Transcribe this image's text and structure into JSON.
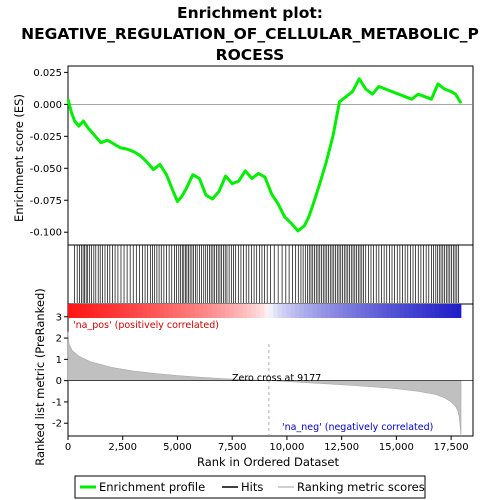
{
  "title_lines": [
    "Enrichment plot:",
    "NEGATIVE_REGULATION_OF_CELLULAR_METABOLIC_P",
    "ROCESS"
  ],
  "labels": {
    "pos": "'na_pos' (positively correlated)",
    "neg": "'na_neg' (negatively correlated)",
    "zero_cross": "Zero cross at 9177"
  },
  "legend": {
    "items": [
      {
        "label": "Enrichment profile",
        "color": "#00ee00"
      },
      {
        "label": "Hits",
        "color": "#000000"
      },
      {
        "label": "Ranking metric scores",
        "color": "#c0c0c0"
      }
    ]
  },
  "colors": {
    "profile": "#00ee00",
    "hits": "#000000",
    "metric": "#c0c0c0",
    "pos_label": "#cc0000",
    "neg_label": "#0000cc",
    "grid": "#000000"
  },
  "chart_data": {
    "type": "line",
    "n_genes": 17950,
    "zero_cross": 9177,
    "xlabel": "Rank in Ordered Dataset",
    "xlim": [
      0,
      18500
    ],
    "xticks": [
      0,
      2500,
      5000,
      7500,
      10000,
      12500,
      15000,
      17500
    ],
    "xtick_labels": [
      "0",
      "2,500",
      "5,000",
      "7,500",
      "10,000",
      "12,500",
      "15,000",
      "17,500"
    ],
    "es": {
      "ylabel": "Enrichment score (ES)",
      "ylim": [
        -0.11,
        0.03
      ],
      "yticks": [
        0.025,
        0.0,
        -0.025,
        -0.05,
        -0.075,
        -0.1
      ],
      "ytick_labels": [
        "0.025",
        "0.000",
        "-0.025",
        "-0.050",
        "-0.075",
        "-0.100"
      ],
      "x": [
        0,
        150,
        300,
        500,
        700,
        900,
        1100,
        1300,
        1500,
        1800,
        2100,
        2400,
        2700,
        3000,
        3300,
        3600,
        3900,
        4200,
        4500,
        4800,
        5000,
        5200,
        5400,
        5700,
        6000,
        6300,
        6600,
        6900,
        7200,
        7500,
        7800,
        8100,
        8400,
        8700,
        9000,
        9300,
        9600,
        9900,
        10200,
        10500,
        10800,
        11000,
        11200,
        11500,
        11800,
        12100,
        12400,
        12700,
        13000,
        13300,
        13600,
        13900,
        14200,
        14500,
        14800,
        15100,
        15400,
        15700,
        16000,
        16300,
        16600,
        16900,
        17200,
        17500,
        17700,
        17950
      ],
      "y": [
        0.004,
        -0.006,
        -0.013,
        -0.017,
        -0.013,
        -0.018,
        -0.022,
        -0.026,
        -0.03,
        -0.028,
        -0.031,
        -0.034,
        -0.035,
        -0.037,
        -0.04,
        -0.045,
        -0.051,
        -0.047,
        -0.055,
        -0.068,
        -0.076,
        -0.072,
        -0.066,
        -0.055,
        -0.058,
        -0.071,
        -0.074,
        -0.068,
        -0.056,
        -0.062,
        -0.06,
        -0.052,
        -0.058,
        -0.054,
        -0.057,
        -0.07,
        -0.078,
        -0.088,
        -0.093,
        -0.099,
        -0.095,
        -0.088,
        -0.078,
        -0.062,
        -0.045,
        -0.025,
        0.002,
        0.006,
        0.01,
        0.02,
        0.012,
        0.008,
        0.014,
        0.012,
        0.01,
        0.008,
        0.006,
        0.004,
        0.008,
        0.006,
        0.004,
        0.016,
        0.012,
        0.01,
        0.008,
        0.001
      ]
    },
    "metric": {
      "ylabel": "Ranked list metric (PreRanked)",
      "ylim": [
        -2.6,
        3.6
      ],
      "yticks": [
        3,
        2,
        1,
        0,
        -1,
        -2
      ],
      "ytick_labels": [
        "3",
        "2",
        "1",
        "0",
        "-1",
        "-2"
      ],
      "x": [
        0,
        50,
        200,
        500,
        1000,
        2000,
        3000,
        4000,
        5000,
        6000,
        7000,
        8000,
        9177,
        10000,
        11000,
        12000,
        13000,
        14000,
        15000,
        16000,
        16800,
        17200,
        17500,
        17700,
        17800,
        17870,
        17920,
        17950
      ],
      "y": [
        2.3,
        1.7,
        1.4,
        1.15,
        0.9,
        0.62,
        0.45,
        0.33,
        0.24,
        0.16,
        0.1,
        0.05,
        0.0,
        -0.04,
        -0.1,
        -0.16,
        -0.23,
        -0.3,
        -0.38,
        -0.5,
        -0.65,
        -0.8,
        -1.0,
        -1.2,
        -1.4,
        -1.7,
        -2.2,
        -2.6
      ]
    },
    "hits": [
      300,
      420,
      520,
      610,
      690,
      760,
      830,
      900,
      990,
      1080,
      1180,
      1270,
      1380,
      1470,
      1580,
      1690,
      1800,
      1910,
      2030,
      2150,
      2280,
      2420,
      2560,
      2700,
      2840,
      2980,
      3120,
      3260,
      3400,
      3520,
      3640,
      3760,
      3860,
      3960,
      4060,
      4160,
      4260,
      4380,
      4500,
      4620,
      4740,
      4860,
      4960,
      5060,
      5140,
      5220,
      5290,
      5360,
      5430,
      5500,
      5580,
      5660,
      5740,
      5820,
      5900,
      6000,
      6100,
      6200,
      6290,
      6380,
      6460,
      6540,
      6620,
      6700,
      6780,
      6860,
      6940,
      7020,
      7100,
      7180,
      7260,
      7360,
      7460,
      7560,
      7660,
      7780,
      7900,
      8020,
      8140,
      8260,
      8380,
      8500,
      8620,
      8740,
      8860,
      8980,
      9100,
      9250,
      9420,
      9600,
      9780,
      9950,
      10100,
      10250,
      10400,
      10520,
      10640,
      10740,
      10840,
      10940,
      11020,
      11100,
      11180,
      11260,
      11340,
      11420,
      11500,
      11580,
      11660,
      11740,
      11820,
      11900,
      11980,
      12060,
      12140,
      12220,
      12300,
      12380,
      12460,
      12540,
      12620,
      12700,
      12780,
      12860,
      12940,
      13020,
      13100,
      13180,
      13260,
      13340,
      13420,
      13500,
      13600,
      13720,
      13840,
      13960,
      14080,
      14200,
      14320,
      14440,
      14560,
      14680,
      14800,
      14920,
      15040,
      15160,
      15280,
      15400,
      15520,
      15640,
      15760,
      15880,
      16000,
      16120,
      16240,
      16360,
      16480,
      16600,
      16700,
      16800,
      16880,
      16960,
      17040,
      17120,
      17200,
      17280,
      17360,
      17440,
      17520,
      17600,
      17680,
      17760,
      17840
    ]
  }
}
